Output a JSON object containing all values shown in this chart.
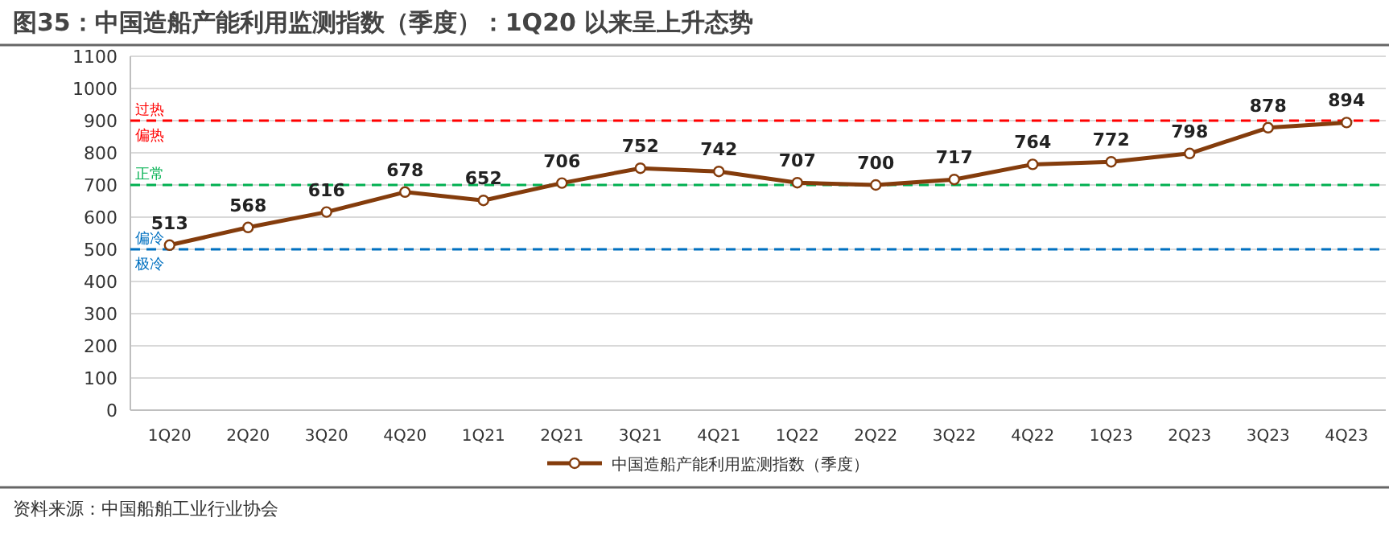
{
  "chart_data": {
    "type": "line",
    "title": "图35：中国造船产能利用监测指数（季度）：1Q20 以来呈上升态势",
    "categories": [
      "1Q20",
      "2Q20",
      "3Q20",
      "4Q20",
      "1Q21",
      "2Q21",
      "3Q21",
      "4Q21",
      "1Q22",
      "2Q22",
      "3Q22",
      "4Q22",
      "1Q23",
      "2Q23",
      "3Q23",
      "4Q23"
    ],
    "series": [
      {
        "name": "中国造船产能利用监测指数（季度）",
        "color": "#843c0c",
        "values": [
          513,
          568,
          616,
          678,
          652,
          706,
          752,
          742,
          707,
          700,
          717,
          764,
          772,
          798,
          878,
          894
        ]
      }
    ],
    "ylim": [
      0,
      1100
    ],
    "yticks": [
      0,
      100,
      200,
      300,
      400,
      500,
      600,
      700,
      800,
      900,
      1000,
      1100
    ],
    "grid": "y",
    "legend": "bottom",
    "marker": "circle",
    "line_style": "solid",
    "data_labels": true,
    "ref_lines": [
      {
        "axis": "y",
        "value": 900,
        "label": "过热",
        "color": "#ff0000",
        "line_style": "dashed"
      },
      {
        "axis": "y",
        "value": 700,
        "label": "正常",
        "color": "#00b050",
        "line_style": "dashed"
      },
      {
        "axis": "y",
        "value": 500,
        "label": "偏冷",
        "color": "#0070c0",
        "line_style": "dashed"
      }
    ],
    "annotations": [
      {
        "text": "偏热",
        "y": 900
      },
      {
        "text": "极冷",
        "y": 500
      },
      "资料来源：中国船舶工业行业协会"
    ]
  }
}
